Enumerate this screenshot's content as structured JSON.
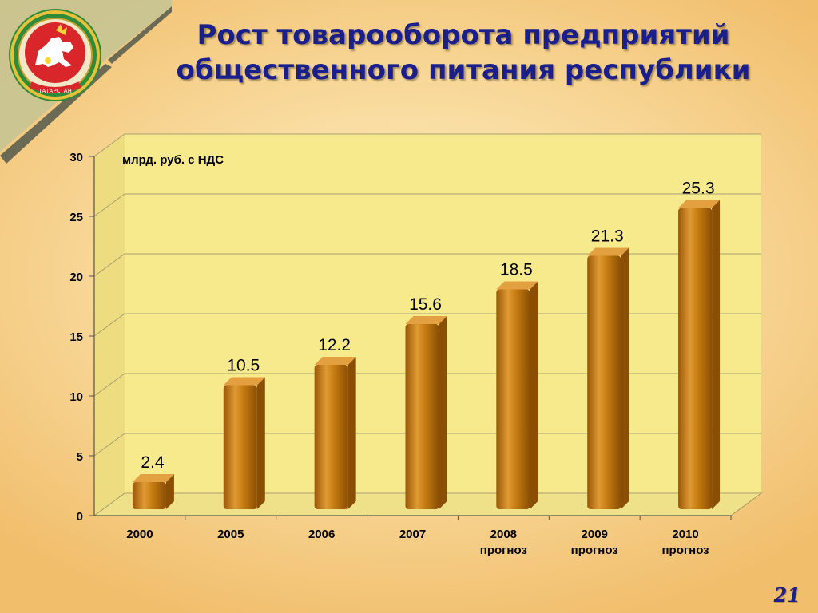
{
  "title_line1": "Рост товарооборота предприятий",
  "title_line2": "общественного питания республики",
  "page_number": "21",
  "emblem": {
    "text": "ТАТАРСТАН",
    "icon": "tatarstan-coat-of-arms"
  },
  "colors": {
    "bar": "#c47a10",
    "bar_dark": "#8a4f05",
    "bar_light": "#e2a040",
    "title": "#1b1f8c",
    "plot_bg": "#f6ea8c"
  },
  "chart_data": {
    "type": "bar",
    "unit_label": "млрд. руб. с НДС",
    "categories": [
      [
        "2000"
      ],
      [
        "2005"
      ],
      [
        "2006"
      ],
      [
        "2007"
      ],
      [
        "2008",
        "прогноз"
      ],
      [
        "2009",
        "прогноз"
      ],
      [
        "2010",
        "прогноз"
      ]
    ],
    "values": [
      2.4,
      10.5,
      12.2,
      15.6,
      18.5,
      21.3,
      25.3
    ],
    "data_labels": [
      "2.4",
      "10.5",
      "12.2",
      "15.6",
      "18.5",
      "21.3",
      "25.3"
    ],
    "ylim": [
      0,
      30
    ],
    "yticks": [
      0,
      5,
      10,
      15,
      20,
      25,
      30
    ],
    "grid": true,
    "legend": "none"
  }
}
